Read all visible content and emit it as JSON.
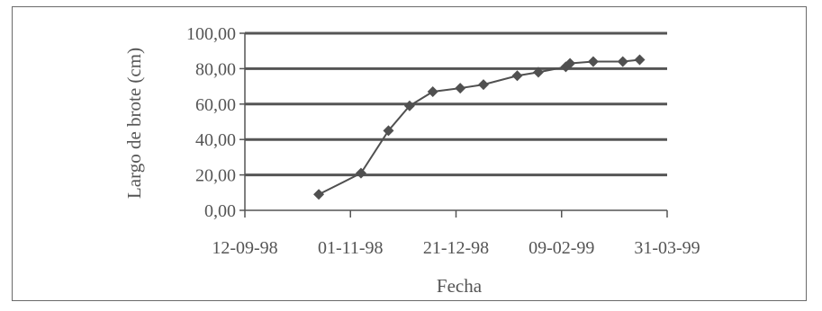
{
  "chart_data": {
    "type": "line",
    "title": "",
    "xlabel": "Fecha",
    "ylabel": "Largo de brote (cm)",
    "x_ticks": [
      "12-09-98",
      "01-11-98",
      "21-12-98",
      "09-02-99",
      "31-03-99"
    ],
    "x_range": [
      "1998-09-12",
      "1999-03-31"
    ],
    "y_ticks": [
      "0,00",
      "20,00",
      "40,00",
      "60,00",
      "80,00",
      "100,00"
    ],
    "ylim": [
      0,
      100
    ],
    "grid": "horizontal",
    "colors": {
      "series": "#505050",
      "grid": "#555555",
      "axis": "#555555",
      "text": "#555555"
    },
    "series": [
      {
        "marker": "diamond",
        "x": [
          "1998-10-17",
          "1998-11-06",
          "1998-11-19",
          "1998-11-29",
          "1998-12-10",
          "1998-12-23",
          "1999-01-03",
          "1999-01-19",
          "1999-01-29",
          "1999-02-11",
          "1999-02-13",
          "1999-02-24",
          "1999-03-10",
          "1999-03-18"
        ],
        "values": [
          9,
          21,
          45,
          59,
          67,
          69,
          71,
          76,
          78,
          81,
          83,
          84,
          84,
          85
        ]
      }
    ]
  }
}
